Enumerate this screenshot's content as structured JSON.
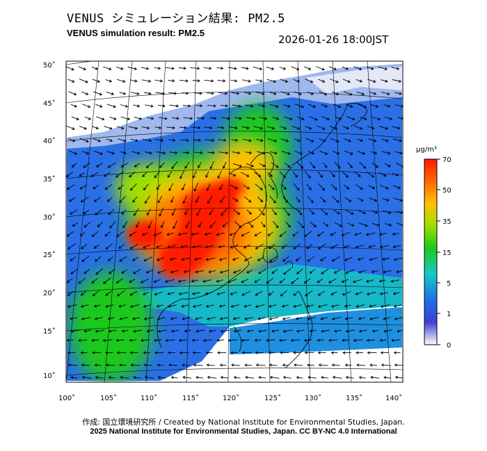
{
  "header": {
    "title_jp": "VENUS シミュレーション結果: PM2.5",
    "title_en": "VENUS simulation result: PM2.5",
    "timestamp": "2026-01-26 18:00JST"
  },
  "map": {
    "variable": "PM2.5",
    "lat_ticks": [
      "50˚",
      "45˚",
      "40˚",
      "35˚",
      "30˚",
      "25˚",
      "20˚",
      "15˚",
      "10˚"
    ],
    "lon_ticks": [
      "100˚",
      "105˚",
      "110˚",
      "115˚",
      "120˚",
      "125˚",
      "130˚",
      "135˚",
      "140˚"
    ],
    "colors": {
      "ocean_fill": "#ffffff",
      "coast": "#000000",
      "grid": "#000000",
      "wind_arrow": "#000000"
    }
  },
  "colorbar": {
    "unit": "μg/m³",
    "ticks": [
      "70",
      "50",
      "35",
      "15",
      "5",
      "1",
      "0"
    ],
    "stops": [
      "#ff1a00",
      "#ff6a00",
      "#ffc000",
      "#9be000",
      "#1ec81e",
      "#17c8c8",
      "#1e6ee6",
      "#4040d0",
      "#ffffff"
    ]
  },
  "footer": {
    "credit": "作成: 国立環境研究所 / Created by National Institute for Environmental Studies, Japan.",
    "license": "2025 National Institute for Environmental Studies, Japan. CC BY-NC 4.0 International"
  }
}
